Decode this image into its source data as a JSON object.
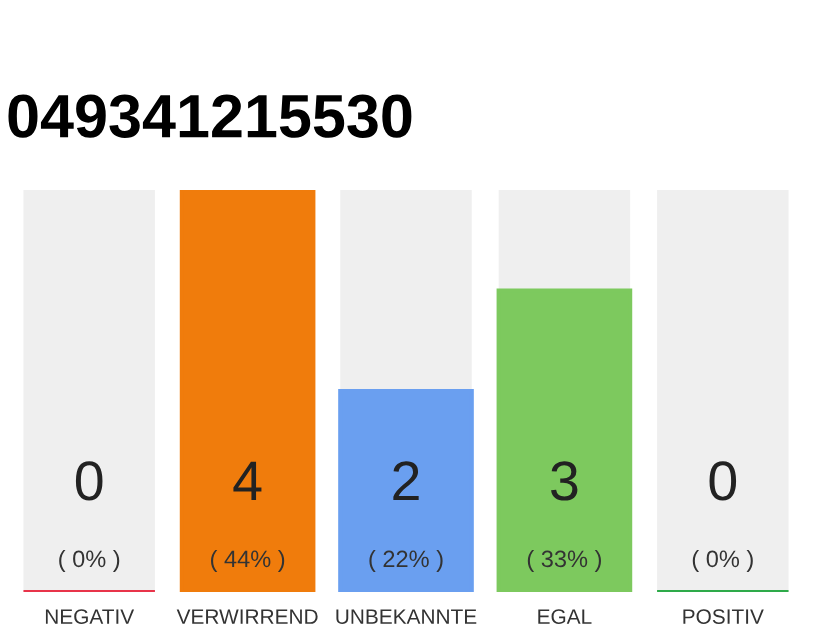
{
  "chart_data": {
    "type": "bar",
    "title": "049341215530",
    "categories": [
      "NEGATIV",
      "VERWIRREND",
      "UNBEKANNTE",
      "EGAL",
      "POSITIV"
    ],
    "values": [
      0,
      4,
      2,
      3,
      0
    ],
    "colors": [
      "#e8344a",
      "#f07c0c",
      "#6a9ff0",
      "#7dc95e",
      "#2eaa4a"
    ],
    "value_labels": [
      "0\n( 0% )",
      "4\n( 44% )",
      "2\n( 22% )",
      "3\n( 33% )",
      "0\n( 0% )"
    ],
    "grid": false,
    "legend": false
  }
}
